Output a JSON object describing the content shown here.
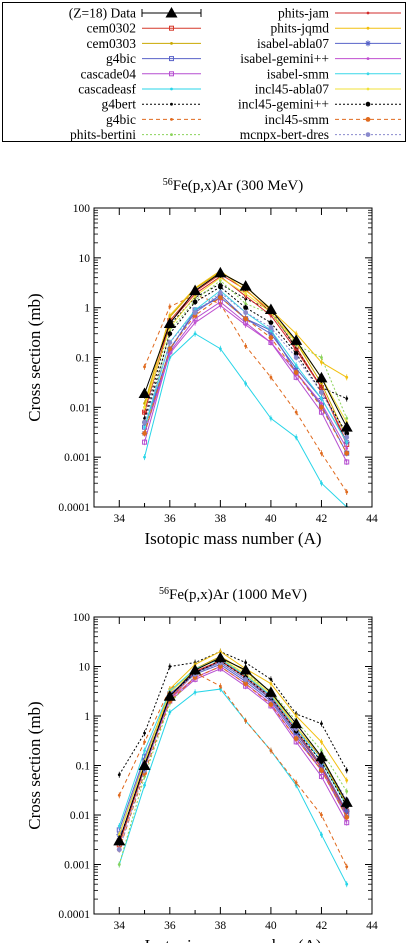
{
  "legend": {
    "entries": [
      {
        "name": "(Z=18) Data",
        "color": "#000000",
        "marker": "triangle",
        "dash": ""
      },
      {
        "name": "cem0302",
        "color": "#d6382a",
        "marker": "square",
        "dash": ""
      },
      {
        "name": "cem0303",
        "color": "#c9a800",
        "marker": "dot",
        "dash": ""
      },
      {
        "name": "g4bic",
        "color": "#5a63c8",
        "marker": "square",
        "dash": ""
      },
      {
        "name": "cascade04",
        "color": "#b64fd1",
        "marker": "square",
        "dash": ""
      },
      {
        "name": "cascadeasf",
        "color": "#27d5e8",
        "marker": "dot",
        "dash": ""
      },
      {
        "name": "g4bert",
        "color": "#000000",
        "marker": "dot",
        "dash": "2,2"
      },
      {
        "name": "g4bic",
        "color": "#e06a1e",
        "marker": "dot",
        "dash": "4,3"
      },
      {
        "name": "phits-bertini",
        "color": "#8bd35a",
        "marker": "dot",
        "dash": "2,2"
      },
      {
        "name": "phits-jam",
        "color": "#d22b2b",
        "marker": "dot",
        "dash": ""
      },
      {
        "name": "phits-jqmd",
        "color": "#f2c010",
        "marker": "dot",
        "dash": ""
      },
      {
        "name": "isabel-abla07",
        "color": "#5763c8",
        "marker": "star",
        "dash": ""
      },
      {
        "name": "isabel-gemini++",
        "color": "#c04fd0",
        "marker": "dot",
        "dash": ""
      },
      {
        "name": "isabel-smm",
        "color": "#39d7e8",
        "marker": "dot",
        "dash": ""
      },
      {
        "name": "incl45-abla07",
        "color": "#f0e23a",
        "marker": "dot",
        "dash": ""
      },
      {
        "name": "incl45-gemini++",
        "color": "#000000",
        "marker": "circle",
        "dash": "2,2"
      },
      {
        "name": "incl45-smm",
        "color": "#e06a1e",
        "marker": "circle",
        "dash": "4,3"
      },
      {
        "name": "mcnpx-bert-dres",
        "color": "#8a8acd",
        "marker": "circle",
        "dash": "2,2"
      }
    ]
  },
  "chart_data": [
    {
      "type": "line",
      "title": "56Fe(p,x)Ar (300 MeV)",
      "title_sup": "56",
      "title_rest": "Fe(p,x)Ar (300 MeV)",
      "xlabel": "Isotopic mass number (A)",
      "ylabel": "Cross section (mb)",
      "xlim": [
        33,
        44
      ],
      "ylim": [
        0.0001,
        100
      ],
      "yscale": "log",
      "grid": false,
      "xticks": [
        34,
        36,
        38,
        40,
        42,
        44
      ],
      "yticks": [
        0.0001,
        0.001,
        0.01,
        0.1,
        1,
        10,
        100
      ],
      "ytick_labels": [
        "0.0001",
        "0.001",
        "0.01",
        "0.1",
        "1",
        "10",
        "100"
      ],
      "x": [
        35,
        36,
        37,
        38,
        39,
        40,
        41,
        42,
        43
      ],
      "data": [
        0.019,
        0.48,
        2.2,
        5.0,
        2.7,
        0.92,
        0.22,
        0.039,
        0.004
      ],
      "series": [
        {
          "name": "cem0302",
          "values": [
            0.008,
            0.55,
            2.1,
            4.7,
            2.3,
            0.8,
            0.16,
            0.025,
            0.0018
          ]
        },
        {
          "name": "cem0303",
          "values": [
            0.012,
            0.65,
            2.4,
            5.2,
            2.6,
            0.95,
            0.2,
            0.03,
            0.0025
          ]
        },
        {
          "name": "g4bic",
          "values": [
            0.004,
            0.14,
            0.9,
            1.6,
            0.6,
            0.35,
            0.05,
            0.011,
            0.0012
          ]
        },
        {
          "name": "cascade04",
          "values": [
            0.002,
            0.13,
            0.6,
            1.3,
            0.5,
            0.2,
            0.04,
            0.008,
            0.0008
          ]
        },
        {
          "name": "cascadeasf",
          "values": [
            0.001,
            0.1,
            0.3,
            0.15,
            0.03,
            0.006,
            0.0025,
            0.0003,
            0.0001
          ]
        },
        {
          "name": "g4bert",
          "values": [
            0.006,
            0.45,
            1.6,
            3.0,
            1.5,
            0.9,
            0.15,
            0.025,
            0.015
          ]
        },
        {
          "name": "g4bic",
          "values": [
            0.065,
            1.05,
            1.8,
            1.2,
            0.17,
            0.04,
            0.008,
            0.0012,
            0.0002
          ]
        },
        {
          "name": "phits-bertini",
          "values": [
            0.003,
            0.35,
            1.4,
            3.5,
            1.2,
            0.75,
            0.18,
            0.1,
            0.006
          ]
        },
        {
          "name": "phits-jam",
          "values": [
            0.008,
            0.5,
            1.9,
            4.2,
            1.7,
            0.7,
            0.14,
            0.025,
            0.002
          ]
        },
        {
          "name": "phits-jqmd",
          "values": [
            0.01,
            0.7,
            2.5,
            5.5,
            2.2,
            0.9,
            0.3,
            0.08,
            0.04
          ]
        },
        {
          "name": "isabel-abla07",
          "values": [
            0.003,
            0.15,
            0.8,
            1.8,
            0.6,
            0.3,
            0.06,
            0.015,
            0.002
          ]
        },
        {
          "name": "isabel-gemini++",
          "values": [
            0.003,
            0.12,
            0.5,
            1.1,
            0.45,
            0.2,
            0.05,
            0.012,
            0.0015
          ]
        },
        {
          "name": "isabel-smm",
          "values": [
            0.004,
            0.2,
            0.9,
            2.2,
            0.8,
            0.35,
            0.07,
            0.015,
            0.002
          ]
        },
        {
          "name": "incl45-abla07",
          "values": [
            0.01,
            0.4,
            1.7,
            4.0,
            1.9,
            0.8,
            0.2,
            0.04,
            0.005
          ]
        },
        {
          "name": "incl45-gemini++",
          "values": [
            0.005,
            0.3,
            1.3,
            2.6,
            1.0,
            0.5,
            0.12,
            0.02,
            0.003
          ]
        },
        {
          "name": "incl45-smm",
          "values": [
            0.003,
            0.15,
            0.7,
            1.6,
            0.6,
            0.25,
            0.05,
            0.01,
            0.0012
          ]
        },
        {
          "name": "mcnpx-bert-dres",
          "values": [
            0.005,
            0.2,
            0.8,
            2.0,
            0.8,
            0.4,
            0.1,
            0.02,
            0.0025
          ]
        }
      ]
    },
    {
      "type": "line",
      "title": "56Fe(p,x)Ar (1000 MeV)",
      "title_sup": "56",
      "title_rest": "Fe(p,x)Ar (1000 MeV)",
      "xlabel": "Isotopic mass number (A)",
      "ylabel": "Cross section (mb)",
      "xlim": [
        33,
        44
      ],
      "ylim": [
        0.0001,
        100
      ],
      "yscale": "log",
      "grid": false,
      "xticks": [
        34,
        36,
        38,
        40,
        42,
        44
      ],
      "yticks": [
        0.0001,
        0.001,
        0.01,
        0.1,
        1,
        10,
        100
      ],
      "ytick_labels": [
        "0.0001",
        "0.001",
        "0.01",
        "0.1",
        "1",
        "10",
        "100"
      ],
      "x": [
        34,
        35,
        36,
        37,
        38,
        39,
        40,
        41,
        42,
        43
      ],
      "data": [
        0.003,
        0.1,
        2.5,
        8.5,
        15,
        8.5,
        3.0,
        0.7,
        0.15,
        0.018
      ],
      "series": [
        {
          "name": "cem0302",
          "values": [
            0.0025,
            0.09,
            2.2,
            7.5,
            13,
            6.5,
            2.4,
            0.5,
            0.1,
            0.012
          ]
        },
        {
          "name": "cem0303",
          "values": [
            0.004,
            0.12,
            3.0,
            9.0,
            16,
            8.0,
            3.0,
            0.6,
            0.14,
            0.016
          ]
        },
        {
          "name": "g4bic",
          "values": [
            0.005,
            0.15,
            2.8,
            7.0,
            11,
            5.0,
            2.0,
            0.4,
            0.08,
            0.01
          ]
        },
        {
          "name": "cascade04",
          "values": [
            0.003,
            0.1,
            2.0,
            5.5,
            9,
            4.0,
            1.6,
            0.3,
            0.06,
            0.007
          ]
        },
        {
          "name": "cascadeasf",
          "values": [
            0.001,
            0.04,
            1.2,
            3.0,
            3.5,
            0.8,
            0.2,
            0.04,
            0.004,
            0.0004
          ]
        },
        {
          "name": "g4bert",
          "values": [
            0.065,
            0.45,
            10,
            12,
            20,
            12,
            5.5,
            1.1,
            0.7,
            0.08
          ]
        },
        {
          "name": "g4bic",
          "values": [
            0.025,
            0.3,
            3.5,
            7.5,
            4.0,
            0.8,
            0.2,
            0.045,
            0.01,
            0.0009
          ]
        },
        {
          "name": "phits-bertini",
          "values": [
            0.001,
            0.06,
            1.8,
            6.5,
            14,
            7.0,
            3.2,
            0.8,
            0.2,
            0.03
          ]
        },
        {
          "name": "phits-jam",
          "values": [
            0.003,
            0.1,
            2.4,
            8.0,
            13,
            6.0,
            2.2,
            0.45,
            0.09,
            0.011
          ]
        },
        {
          "name": "phits-jqmd",
          "values": [
            0.004,
            0.12,
            3.5,
            11,
            20,
            9.0,
            4.5,
            1.0,
            0.3,
            0.05
          ]
        },
        {
          "name": "isabel-abla07",
          "values": [
            0.004,
            0.13,
            2.6,
            7.5,
            12,
            5.5,
            2.2,
            0.45,
            0.1,
            0.012
          ]
        },
        {
          "name": "isabel-gemini++",
          "values": [
            0.003,
            0.1,
            2.2,
            6.0,
            10,
            4.5,
            1.8,
            0.35,
            0.08,
            0.009
          ]
        },
        {
          "name": "isabel-smm",
          "values": [
            0.006,
            0.2,
            3.2,
            9.0,
            14,
            6.5,
            2.6,
            0.55,
            0.12,
            0.015
          ]
        },
        {
          "name": "incl45-abla07",
          "values": [
            0.004,
            0.12,
            3.0,
            8.5,
            15,
            7.0,
            2.8,
            0.6,
            0.15,
            0.018
          ]
        },
        {
          "name": "incl45-gemini++",
          "values": [
            0.003,
            0.1,
            2.6,
            7.5,
            13,
            6.0,
            2.4,
            0.5,
            0.12,
            0.015
          ]
        },
        {
          "name": "incl45-smm",
          "values": [
            0.002,
            0.07,
            2.0,
            6.0,
            10,
            4.5,
            1.7,
            0.35,
            0.08,
            0.009
          ]
        },
        {
          "name": "mcnpx-bert-dres",
          "values": [
            0.002,
            0.08,
            2.4,
            7.0,
            12,
            5.5,
            2.5,
            0.55,
            0.14,
            0.02
          ]
        }
      ]
    }
  ]
}
